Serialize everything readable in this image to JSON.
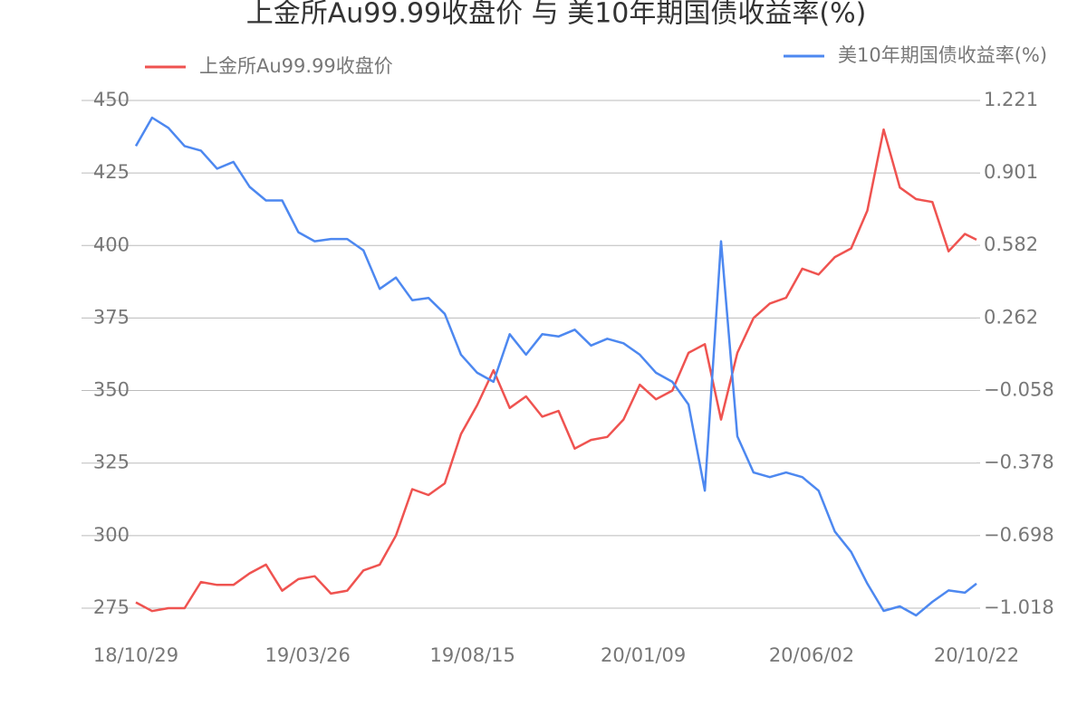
{
  "chart_data": {
    "type": "line",
    "title": "上金所Au99.99收盘价 与 美10年期国债收益率(%)",
    "x": [
      "18/10/29",
      "18/11/12",
      "18/11/26",
      "18/12/10",
      "18/12/24",
      "19/01/07",
      "19/01/21",
      "19/02/04",
      "19/02/18",
      "19/03/04",
      "19/03/18",
      "19/04/01",
      "19/04/15",
      "19/04/29",
      "19/05/13",
      "19/05/27",
      "19/06/10",
      "19/06/24",
      "19/07/08",
      "19/07/22",
      "19/08/05",
      "19/08/19",
      "19/09/02",
      "19/09/16",
      "19/09/30",
      "19/10/14",
      "19/10/28",
      "19/11/11",
      "19/11/25",
      "19/12/09",
      "19/12/23",
      "20/01/06",
      "20/01/20",
      "20/02/03",
      "20/02/17",
      "20/03/02",
      "20/03/16",
      "20/03/30",
      "20/04/13",
      "20/04/27",
      "20/05/11",
      "20/05/25",
      "20/06/08",
      "20/06/22",
      "20/07/06",
      "20/07/20",
      "20/08/03",
      "20/08/17",
      "20/08/31",
      "20/09/14",
      "20/09/28",
      "20/10/12",
      "20/10/22"
    ],
    "xticks": [
      "18/10/29",
      "19/03/26",
      "19/08/15",
      "20/01/09",
      "20/06/02",
      "20/10/22"
    ],
    "series": [
      {
        "name": "上金所Au99.99收盘价",
        "color": "#ef5350",
        "values": [
          277,
          274,
          275,
          275,
          284,
          283,
          283,
          287,
          290,
          281,
          285,
          286,
          280,
          281,
          288,
          290,
          300,
          316,
          314,
          318,
          335,
          345,
          357,
          344,
          348,
          341,
          343,
          330,
          333,
          334,
          340,
          352,
          347,
          350,
          363,
          366,
          340,
          363,
          375,
          380,
          382,
          392,
          390,
          396,
          399,
          412,
          440,
          420,
          416,
          415,
          398,
          404,
          402
        ]
      },
      {
        "name": "美10年期国债收益率(%)",
        "color": "#4d88f0",
        "axis": "y2",
        "values": [
          1.02,
          1.145,
          1.1,
          1.02,
          1.0,
          0.92,
          0.95,
          0.84,
          0.78,
          0.78,
          0.64,
          0.6,
          0.61,
          0.61,
          0.56,
          0.39,
          0.44,
          0.34,
          0.35,
          0.28,
          0.1,
          0.02,
          -0.02,
          0.19,
          0.1,
          0.19,
          0.18,
          0.21,
          0.14,
          0.17,
          0.15,
          0.1,
          0.02,
          -0.02,
          -0.12,
          -0.5,
          0.6,
          -0.26,
          -0.42,
          -0.44,
          -0.42,
          -0.44,
          -0.5,
          -0.68,
          -0.77,
          -0.91,
          -1.03,
          -1.01,
          -1.05,
          -0.99,
          -0.94,
          -0.95,
          -0.91
        ]
      }
    ],
    "ylim": [
      270,
      450
    ],
    "yticks": [
      275,
      300,
      325,
      350,
      375,
      400,
      425,
      450
    ],
    "y2lim": [
      -1.082,
      1.221
    ],
    "y2ticks": [
      {
        "value": -1.018,
        "label": "−1.018"
      },
      {
        "value": -0.698,
        "label": "−0.698"
      },
      {
        "value": -0.378,
        "label": "−0.378"
      },
      {
        "value": -0.058,
        "label": "−0.058"
      },
      0.262,
      0.582,
      0.901,
      1.221
    ],
    "grid": true
  }
}
